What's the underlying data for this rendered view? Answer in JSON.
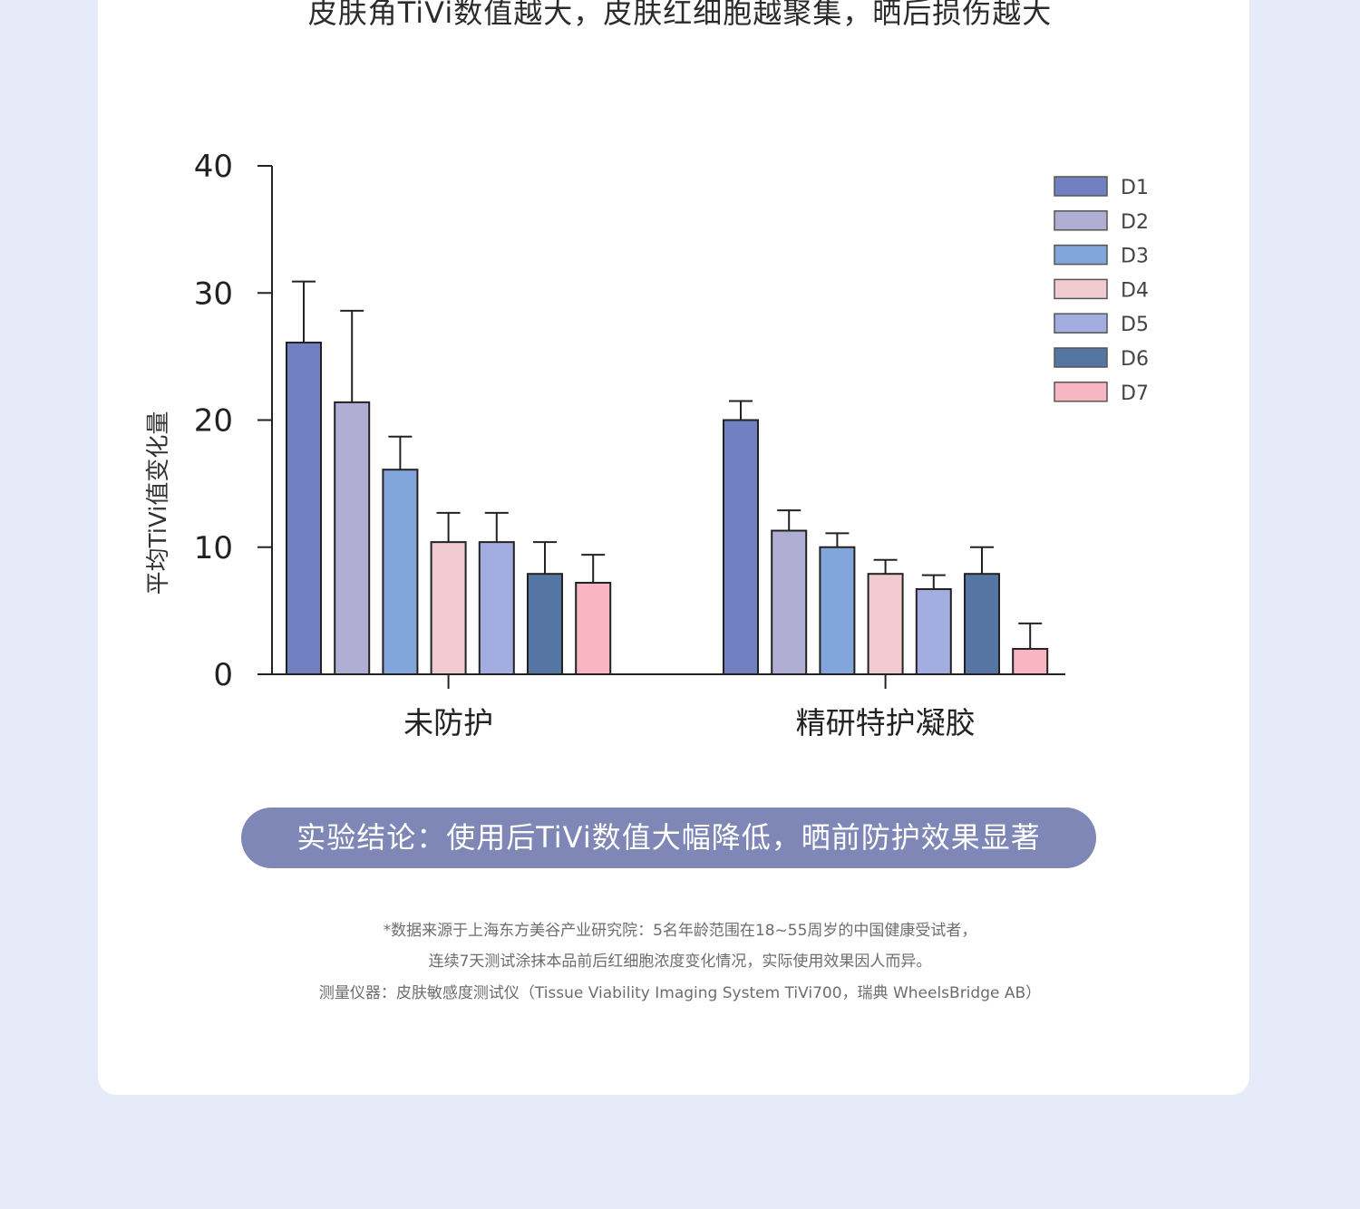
{
  "headline": "皮肤角TiVi数值越大，皮肤红细胞越聚集，晒后损伤越大",
  "chart_data": {
    "type": "bar",
    "title": "",
    "ylabel": "平均TiVi值变化量",
    "xlabel": "",
    "ylim": [
      0,
      40
    ],
    "yticks": [
      "0",
      "10",
      "20",
      "30",
      "40"
    ],
    "categories": [
      "未防护",
      "精研特护凝胶"
    ],
    "legend_position": "top-right",
    "error_bars": true,
    "series": [
      {
        "name": "D1",
        "color": "#7080c0",
        "values": [
          26.1,
          20.0
        ],
        "errors": [
          4.8,
          1.5
        ]
      },
      {
        "name": "D2",
        "color": "#b0aed3",
        "values": [
          21.4,
          11.3
        ],
        "errors": [
          7.2,
          1.6
        ]
      },
      {
        "name": "D3",
        "color": "#82a6db",
        "values": [
          16.1,
          10.0
        ],
        "errors": [
          2.6,
          1.1
        ]
      },
      {
        "name": "D4",
        "color": "#f2cbd0",
        "values": [
          10.4,
          7.9
        ],
        "errors": [
          2.3,
          1.1
        ]
      },
      {
        "name": "D5",
        "color": "#a3addf",
        "values": [
          10.4,
          6.7
        ],
        "errors": [
          2.3,
          1.1
        ]
      },
      {
        "name": "D6",
        "color": "#5575a3",
        "values": [
          7.9,
          7.9
        ],
        "errors": [
          2.5,
          2.1
        ]
      },
      {
        "name": "D7",
        "color": "#f8b5c2",
        "values": [
          7.2,
          2.0
        ],
        "errors": [
          2.2,
          2.0
        ]
      }
    ]
  },
  "conclusion": "实验结论：使用后TiVi数值大幅降低，晒前防护效果显著",
  "footnotes": [
    "*数据来源于上海东方美谷产业研究院：5名年龄范围在18~55周岁的中国健康受试者，",
    "连续7天测试涂抹本品前后红细胞浓度变化情况，实际使用效果因人而异。",
    "测量仪器：皮肤敏感度测试仪（Tissue Viability Imaging System TiVi700，瑞典 WheelsBridge AB）"
  ]
}
